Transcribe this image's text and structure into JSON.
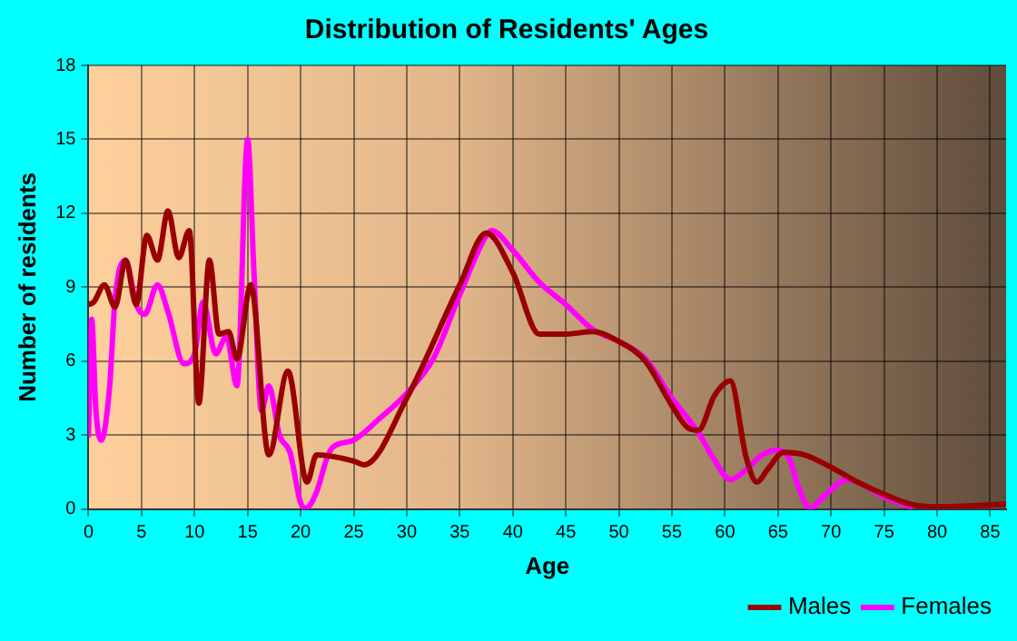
{
  "chart_data": {
    "type": "line",
    "title": "Distribution of Residents' Ages",
    "xlabel": "Age",
    "ylabel": "Number of residents",
    "xlim": [
      0,
      86.5
    ],
    "xticks": [
      0,
      5,
      10,
      15,
      20,
      25,
      30,
      35,
      40,
      45,
      50,
      55,
      60,
      65,
      70,
      75,
      80,
      85
    ],
    "ylim": [
      0,
      18
    ],
    "yticks": [
      0,
      3,
      6,
      9,
      12,
      15,
      18
    ],
    "grid": true,
    "legend": "bottom right",
    "marker": "none",
    "line_style": "solid",
    "series": [
      {
        "name": "Males",
        "color": "#990000",
        "x": [
          0,
          0.5,
          1.5,
          2.5,
          3.5,
          4.5,
          5.5,
          6.5,
          7.5,
          8.5,
          9.5,
          10.4,
          11.4,
          12.3,
          13.2,
          14,
          15.3,
          17,
          18.8,
          20.6,
          21.5,
          25,
          26,
          30,
          35,
          37.5,
          40,
          42.5,
          45,
          47.5,
          50,
          52.5,
          55,
          56.5,
          57.5,
          59,
          60.5,
          62,
          63,
          64,
          65.5,
          67.5,
          70,
          72.5,
          75,
          77.5,
          80,
          86.5
        ],
        "values": [
          8.3,
          8.4,
          9.1,
          8.2,
          10.1,
          8.3,
          11.1,
          10.1,
          12.1,
          10.2,
          11.3,
          4.3,
          10.1,
          7.1,
          7.2,
          6.1,
          9.1,
          2.2,
          5.6,
          1.1,
          2.2,
          1.95,
          1.8,
          4.5,
          9.1,
          11.2,
          9.6,
          7.1,
          7.1,
          7.2,
          6.8,
          6,
          4.2,
          3.3,
          3.2,
          4.6,
          5.2,
          2.1,
          1.1,
          1.6,
          2.3,
          2.2,
          1.7,
          1.1,
          0.6,
          0.2,
          0.1,
          0.2
        ]
      },
      {
        "name": "Females",
        "color": "#ff00ff",
        "x": [
          0,
          0.3,
          0.7,
          1.2,
          2,
          2.5,
          3.5,
          4.5,
          5.3,
          6.5,
          7.5,
          9,
          10,
          10.8,
          12,
          13,
          14,
          15,
          15.6,
          16.3,
          17,
          18,
          19,
          20,
          20.5,
          21.5,
          22.5,
          23,
          25,
          27.5,
          30,
          32.5,
          35,
          37.5,
          38,
          40,
          42.5,
          45,
          47.5,
          50,
          52.5,
          55,
          57.5,
          59,
          60.5,
          62,
          63.5,
          65,
          66,
          67,
          68,
          69.5,
          71.5,
          72.5,
          75,
          77.5
        ],
        "values": [
          3,
          7.7,
          4,
          2.8,
          5,
          8.5,
          10.1,
          8.3,
          7.9,
          9.1,
          8,
          5.9,
          6.3,
          8.4,
          6.3,
          7,
          5,
          15,
          9.6,
          4,
          5,
          3,
          2.3,
          0.25,
          0.05,
          0.7,
          2.1,
          2.5,
          2.8,
          3.7,
          4.7,
          6.1,
          8.7,
          11.1,
          11.3,
          10.5,
          9.2,
          8.3,
          7.3,
          6.8,
          6.1,
          4.5,
          3.1,
          2,
          1.2,
          1.6,
          2.2,
          2.4,
          2.1,
          0.8,
          0.05,
          0.6,
          1.2,
          1.1,
          0.5,
          0.1
        ]
      }
    ]
  }
}
